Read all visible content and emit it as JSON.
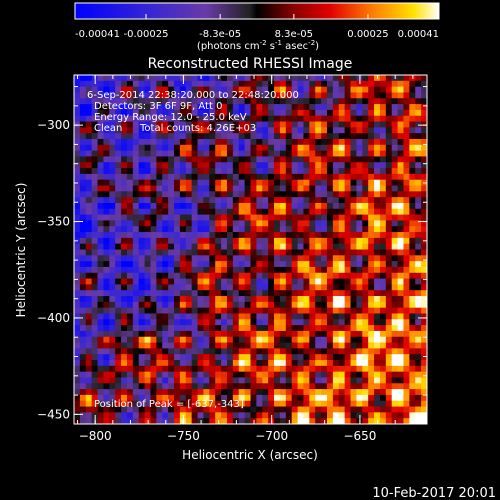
{
  "chart_data": {
    "type": "heatmap",
    "title": "Reconstructed RHESSI Image",
    "xlabel": "Heliocentric X (arcsec)",
    "ylabel": "Heliocentric Y (arcsec)",
    "xlim": [
      -812,
      -612
    ],
    "ylim": [
      -455,
      -274
    ],
    "x_ticks": [
      -800,
      -750,
      -700,
      -650
    ],
    "y_ticks": [
      -450,
      -400,
      -350,
      -300
    ],
    "colorbar": {
      "range": [
        -0.00041,
        0.00041
      ],
      "ticks": [
        "-0.00041",
        "-0.00025",
        "-8.3e-05",
        "8.3e-05",
        "0.00025",
        "0.00041"
      ],
      "units": "(photons cm^-2 s^-1 asec^-2)"
    },
    "annotations": {
      "time_range": "6-Sep-2014 22:38:20.000 to 22:48:20.000",
      "detectors": "Detectors: 3F 6F 9F, Att 0",
      "energy": "Energy Range: 12.0 - 25.0 keV",
      "clean_label": "Clean",
      "counts": "Total counts: 4.26E+03",
      "peak": "Position of Peak = [-637,-343]"
    },
    "peak": {
      "x": -637,
      "y": -343
    },
    "timestamp": "10-Feb-2017 20:01"
  }
}
